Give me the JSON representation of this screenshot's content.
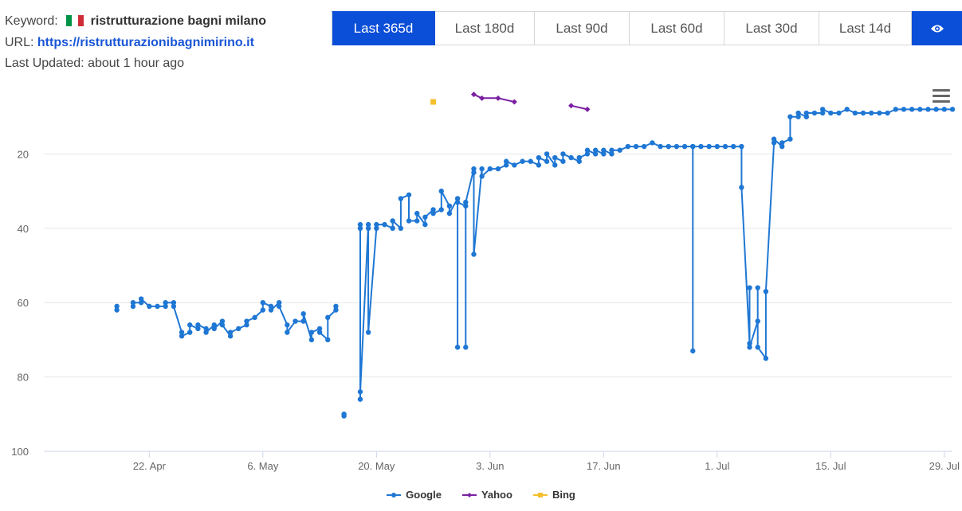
{
  "header": {
    "keyword_label": "Keyword:",
    "keyword_value": "ristrutturazione bagni milano",
    "url_label": "URL:",
    "url_value": "https://ristrutturazionibagnimirino.it",
    "updated_label": "Last Updated:",
    "updated_value": "about 1 hour ago",
    "flag_colors": [
      "#009246",
      "#ffffff",
      "#ce2b37"
    ]
  },
  "tabs": [
    {
      "label": "Last 365d",
      "active": true
    },
    {
      "label": "Last 180d",
      "active": false
    },
    {
      "label": "Last 90d",
      "active": false
    },
    {
      "label": "Last 60d",
      "active": false
    },
    {
      "label": "Last 30d",
      "active": false
    },
    {
      "label": "Last 14d",
      "active": false
    }
  ],
  "eye_icon": "eye-icon",
  "menu_icon": "hamburger-menu-icon",
  "colors": {
    "accent": "#0b4ed8",
    "google": "#1f77d4",
    "yahoo": "#7a1fa2",
    "bing": "#f5c02e",
    "grid": "#e6e6e6"
  },
  "chart_data": {
    "type": "line",
    "yaxis_reversed": true,
    "ylim": [
      0,
      100
    ],
    "yticks": [
      20,
      40,
      60,
      80,
      100
    ],
    "x_start": "2024-04-09",
    "x_end": "2024-07-30",
    "xticks": [
      {
        "date": "2024-04-22",
        "label": "22. Apr"
      },
      {
        "date": "2024-05-06",
        "label": "6. May"
      },
      {
        "date": "2024-05-20",
        "label": "20. May"
      },
      {
        "date": "2024-06-03",
        "label": "3. Jun"
      },
      {
        "date": "2024-06-17",
        "label": "17. Jun"
      },
      {
        "date": "2024-07-01",
        "label": "1. Jul"
      },
      {
        "date": "2024-07-15",
        "label": "15. Jul"
      },
      {
        "date": "2024-07-29",
        "label": "29. Jul"
      }
    ],
    "grid": true,
    "legend_position": "bottom-center",
    "series": [
      {
        "name": "Google",
        "points": [
          [
            "2024-04-18",
            62
          ],
          [
            "2024-04-18",
            61
          ],
          null,
          [
            "2024-04-20",
            61
          ],
          [
            "2024-04-20",
            60
          ],
          [
            "2024-04-21",
            60
          ],
          [
            "2024-04-21",
            59
          ],
          [
            "2024-04-22",
            61
          ],
          [
            "2024-04-23",
            61
          ],
          [
            "2024-04-24",
            61
          ],
          [
            "2024-04-24",
            60
          ],
          [
            "2024-04-25",
            60
          ],
          [
            "2024-04-25",
            61
          ],
          [
            "2024-04-26",
            68
          ],
          [
            "2024-04-26",
            69
          ],
          [
            "2024-04-27",
            68
          ],
          [
            "2024-04-27",
            66
          ],
          [
            "2024-04-28",
            67
          ],
          [
            "2024-04-28",
            66
          ],
          [
            "2024-04-29",
            67
          ],
          [
            "2024-04-29",
            68
          ],
          [
            "2024-04-30",
            66
          ],
          [
            "2024-04-30",
            67
          ],
          [
            "2024-05-01",
            65
          ],
          [
            "2024-05-01",
            66
          ],
          [
            "2024-05-02",
            69
          ],
          [
            "2024-05-02",
            68
          ],
          [
            "2024-05-03",
            67
          ],
          [
            "2024-05-04",
            66
          ],
          [
            "2024-05-04",
            65
          ],
          [
            "2024-05-05",
            64
          ],
          [
            "2024-05-06",
            62
          ],
          [
            "2024-05-06",
            60
          ],
          [
            "2024-05-07",
            61
          ],
          [
            "2024-05-07",
            62
          ],
          [
            "2024-05-08",
            60
          ],
          [
            "2024-05-08",
            61
          ],
          [
            "2024-05-09",
            66
          ],
          [
            "2024-05-09",
            68
          ],
          [
            "2024-05-10",
            65
          ],
          [
            "2024-05-11",
            65
          ],
          [
            "2024-05-11",
            63
          ],
          [
            "2024-05-12",
            70
          ],
          [
            "2024-05-12",
            68
          ],
          [
            "2024-05-13",
            67
          ],
          [
            "2024-05-13",
            68
          ],
          [
            "2024-05-14",
            70
          ],
          [
            "2024-05-14",
            64
          ],
          [
            "2024-05-15",
            62
          ],
          [
            "2024-05-15",
            61
          ],
          null,
          [
            "2024-05-16",
            90.5
          ],
          [
            "2024-05-16",
            90
          ],
          null,
          [
            "2024-05-18",
            40
          ],
          [
            "2024-05-18",
            39
          ],
          [
            "2024-05-18",
            86
          ],
          [
            "2024-05-18",
            84
          ],
          [
            "2024-05-19",
            39
          ],
          [
            "2024-05-19",
            40
          ],
          [
            "2024-05-19",
            68
          ],
          [
            "2024-05-20",
            40
          ],
          [
            "2024-05-20",
            39
          ],
          [
            "2024-05-21",
            39
          ],
          [
            "2024-05-22",
            40
          ],
          [
            "2024-05-22",
            38
          ],
          [
            "2024-05-23",
            40
          ],
          [
            "2024-05-23",
            32
          ],
          [
            "2024-05-24",
            31
          ],
          [
            "2024-05-24",
            38
          ],
          [
            "2024-05-25",
            38
          ],
          [
            "2024-05-25",
            36
          ],
          [
            "2024-05-26",
            39
          ],
          [
            "2024-05-26",
            37
          ],
          [
            "2024-05-27",
            35
          ],
          [
            "2024-05-27",
            36
          ],
          [
            "2024-05-28",
            35
          ],
          [
            "2024-05-28",
            30
          ],
          [
            "2024-05-29",
            34
          ],
          [
            "2024-05-29",
            36
          ],
          [
            "2024-05-30",
            32
          ],
          [
            "2024-05-30",
            72
          ],
          [
            "2024-05-30",
            33
          ],
          [
            "2024-05-31",
            34
          ],
          [
            "2024-05-31",
            72
          ],
          [
            "2024-05-31",
            33
          ],
          [
            "2024-06-01",
            24
          ],
          [
            "2024-06-01",
            25
          ],
          [
            "2024-06-01",
            47
          ],
          [
            "2024-06-02",
            24
          ],
          [
            "2024-06-02",
            26
          ],
          [
            "2024-06-03",
            24
          ],
          [
            "2024-06-04",
            24
          ],
          [
            "2024-06-05",
            23
          ],
          [
            "2024-06-05",
            22
          ],
          [
            "2024-06-06",
            23
          ],
          [
            "2024-06-07",
            22
          ],
          [
            "2024-06-08",
            22
          ],
          [
            "2024-06-09",
            23
          ],
          [
            "2024-06-09",
            21
          ],
          [
            "2024-06-10",
            22
          ],
          [
            "2024-06-10",
            20
          ],
          [
            "2024-06-11",
            23
          ],
          [
            "2024-06-11",
            21
          ],
          [
            "2024-06-12",
            22
          ],
          [
            "2024-06-12",
            20
          ],
          [
            "2024-06-13",
            21
          ],
          [
            "2024-06-14",
            22
          ],
          [
            "2024-06-14",
            21
          ],
          [
            "2024-06-15",
            20
          ],
          [
            "2024-06-15",
            19
          ],
          [
            "2024-06-16",
            20
          ],
          [
            "2024-06-16",
            19
          ],
          [
            "2024-06-17",
            20
          ],
          [
            "2024-06-17",
            19
          ],
          [
            "2024-06-18",
            20
          ],
          [
            "2024-06-18",
            19
          ],
          [
            "2024-06-19",
            19
          ],
          [
            "2024-06-20",
            18
          ],
          [
            "2024-06-21",
            18
          ],
          [
            "2024-06-22",
            18
          ],
          [
            "2024-06-23",
            17
          ],
          [
            "2024-06-24",
            18
          ],
          [
            "2024-06-25",
            18
          ],
          [
            "2024-06-26",
            18
          ],
          [
            "2024-06-27",
            18
          ],
          [
            "2024-06-28",
            18
          ],
          [
            "2024-06-28",
            73
          ],
          [
            "2024-06-28",
            18
          ],
          [
            "2024-06-29",
            18
          ],
          [
            "2024-06-30",
            18
          ],
          [
            "2024-07-01",
            18
          ],
          [
            "2024-07-02",
            18
          ],
          [
            "2024-07-03",
            18
          ],
          [
            "2024-07-04",
            18
          ],
          [
            "2024-07-04",
            29
          ],
          [
            "2024-07-05",
            71
          ],
          [
            "2024-07-05",
            56
          ],
          [
            "2024-07-05",
            72
          ],
          [
            "2024-07-06",
            65
          ],
          [
            "2024-07-06",
            56
          ],
          [
            "2024-07-06",
            72
          ],
          [
            "2024-07-07",
            75
          ],
          [
            "2024-07-07",
            57
          ],
          [
            "2024-07-08",
            17
          ],
          [
            "2024-07-08",
            16
          ],
          [
            "2024-07-09",
            18
          ],
          [
            "2024-07-09",
            17
          ],
          [
            "2024-07-10",
            16
          ],
          [
            "2024-07-10",
            10
          ],
          [
            "2024-07-11",
            10
          ],
          [
            "2024-07-11",
            9
          ],
          [
            "2024-07-12",
            10
          ],
          [
            "2024-07-12",
            9
          ],
          [
            "2024-07-13",
            9
          ],
          [
            "2024-07-14",
            9
          ],
          [
            "2024-07-14",
            8
          ],
          [
            "2024-07-15",
            9
          ],
          [
            "2024-07-16",
            9
          ],
          [
            "2024-07-17",
            8
          ],
          [
            "2024-07-18",
            9
          ],
          [
            "2024-07-19",
            9
          ],
          [
            "2024-07-20",
            9
          ],
          [
            "2024-07-21",
            9
          ],
          [
            "2024-07-22",
            9
          ],
          [
            "2024-07-23",
            8
          ],
          [
            "2024-07-24",
            8
          ],
          [
            "2024-07-25",
            8
          ],
          [
            "2024-07-26",
            8
          ],
          [
            "2024-07-27",
            8
          ],
          [
            "2024-07-28",
            8
          ],
          [
            "2024-07-29",
            8
          ],
          [
            "2024-07-30",
            8
          ]
        ]
      },
      {
        "name": "Yahoo",
        "points": [
          [
            "2024-06-01",
            4
          ],
          [
            "2024-06-02",
            5
          ],
          [
            "2024-06-04",
            5
          ],
          [
            "2024-06-06",
            6
          ],
          null,
          [
            "2024-06-13",
            7
          ],
          [
            "2024-06-15",
            8
          ]
        ]
      },
      {
        "name": "Bing",
        "points": [
          [
            "2024-05-27",
            6
          ]
        ]
      }
    ]
  }
}
